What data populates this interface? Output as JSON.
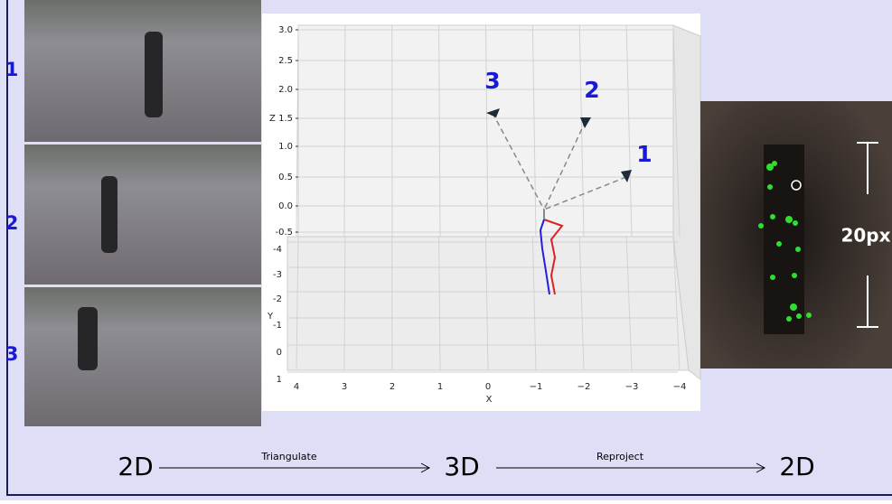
{
  "views": [
    {
      "label": "1"
    },
    {
      "label": "2"
    },
    {
      "label": "3"
    }
  ],
  "plot": {
    "z_axis": {
      "label": "Z",
      "ticks": [
        "3.0",
        "2.5",
        "2.0",
        "1.5",
        "1.0",
        "0.5",
        "0.0",
        "-0.5"
      ]
    },
    "y_axis": {
      "label": "Y",
      "ticks": [
        "-4",
        "-3",
        "-2",
        "-1",
        "0",
        "1"
      ]
    },
    "x_axis": {
      "label": "X",
      "ticks": [
        "4",
        "3",
        "2",
        "1",
        "0",
        "−1",
        "−2",
        "−3",
        "−4"
      ]
    },
    "cameras": [
      "1",
      "2",
      "3"
    ]
  },
  "crop": {
    "scale_label": "20px"
  },
  "pipeline": {
    "steps": [
      "2D",
      "3D",
      "2D"
    ],
    "operations": [
      "Triangulate",
      "Reproject"
    ]
  }
}
